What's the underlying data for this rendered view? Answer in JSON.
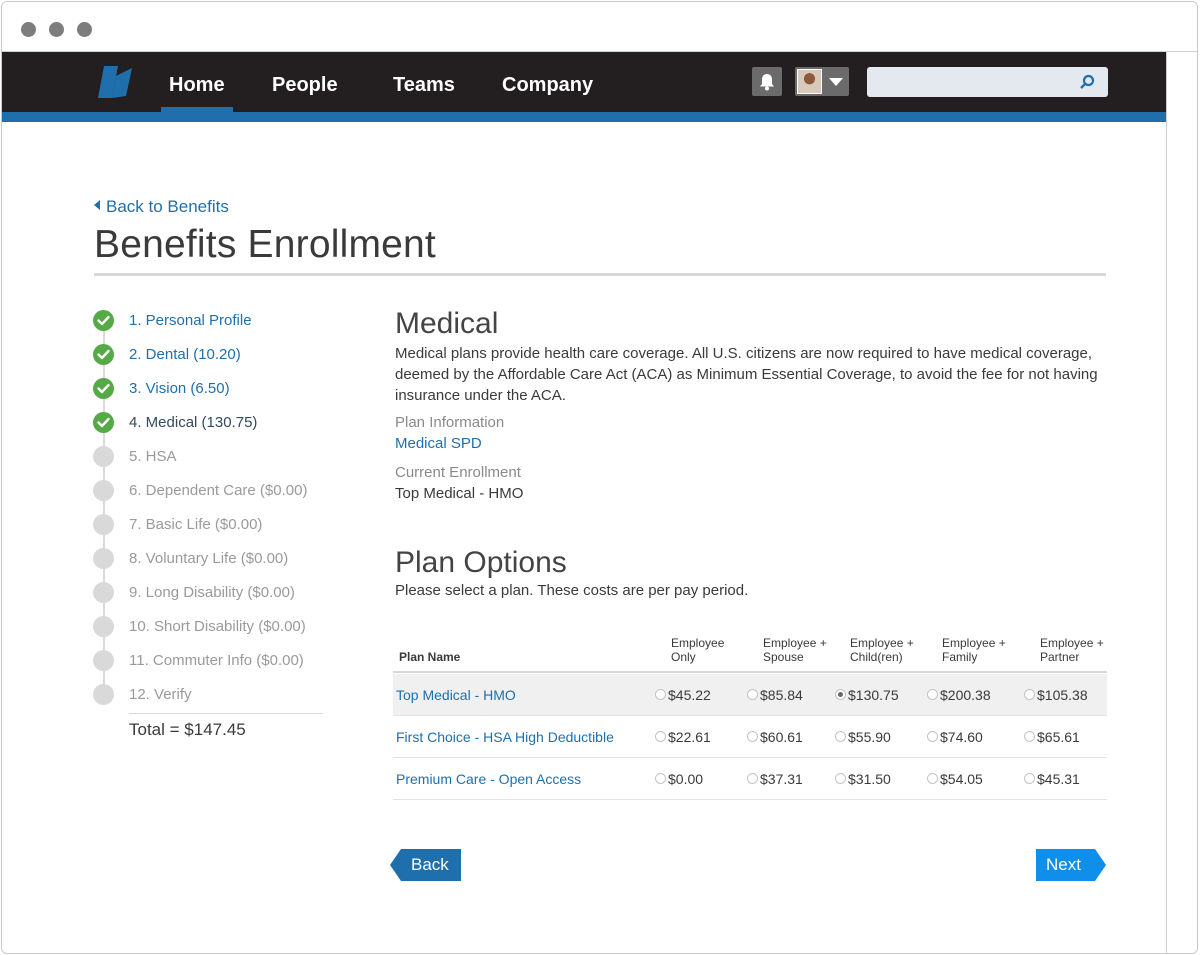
{
  "nav": {
    "items": [
      {
        "label": "Home",
        "active": true
      },
      {
        "label": "People",
        "active": false
      },
      {
        "label": "Teams",
        "active": false
      },
      {
        "label": "Company",
        "active": false
      }
    ],
    "search_value": "",
    "icons": {
      "logo": "brand-logo",
      "notifications": "bell-icon",
      "account": "avatar",
      "search": "search-icon"
    }
  },
  "page": {
    "back_link": "Back to Benefits",
    "title": "Benefits Enrollment"
  },
  "steps": [
    {
      "label": "1. Personal Profile",
      "status": "done"
    },
    {
      "label": "2. Dental (10.20)",
      "status": "done"
    },
    {
      "label": "3. Vision (6.50)",
      "status": "done"
    },
    {
      "label": "4. Medical (130.75)",
      "status": "current"
    },
    {
      "label": "5. HSA",
      "status": "todo"
    },
    {
      "label": "6. Dependent Care ($0.00)",
      "status": "todo"
    },
    {
      "label": "7. Basic Life ($0.00)",
      "status": "todo"
    },
    {
      "label": "8. Voluntary Life ($0.00)",
      "status": "todo"
    },
    {
      "label": "9. Long Disability ($0.00)",
      "status": "todo"
    },
    {
      "label": "10. Short Disability ($0.00)",
      "status": "todo"
    },
    {
      "label": "11. Commuter Info ($0.00)",
      "status": "todo"
    },
    {
      "label": "12. Verify",
      "status": "todo"
    }
  ],
  "total": "Total = $147.45",
  "medical": {
    "heading": "Medical",
    "description": "Medical plans provide health care coverage.  All U.S. citizens are now required to have medical coverage,  deemed by the Affordable Care Act (ACA) as Minimum Essential Coverage, to avoid the fee for not having insurance under the ACA.",
    "plan_info_label": "Plan Information",
    "plan_info_link": "Medical SPD",
    "current_enrollment_label": "Current Enrollment",
    "current_enrollment_value": "Top Medical - HMO"
  },
  "plans": {
    "heading": "Plan Options",
    "subtitle": "Please select a plan. These costs are per pay period.",
    "columns": [
      {
        "line1": "Plan Name",
        "line2": ""
      },
      {
        "line1": "Employee",
        "line2": "Only"
      },
      {
        "line1": "Employee +",
        "line2": "Spouse"
      },
      {
        "line1": "Employee +",
        "line2": "Child(ren)"
      },
      {
        "line1": "Employee +",
        "line2": "Family"
      },
      {
        "line1": "Employee +",
        "line2": "Partner"
      }
    ],
    "rows": [
      {
        "name": "Top Medical - HMO",
        "prices": [
          "$45.22",
          "$85.84",
          "$130.75",
          "$200.38",
          "$105.38"
        ],
        "selected_index": 2
      },
      {
        "name": "First Choice - HSA High Deductible",
        "prices": [
          "$22.61",
          "$60.61",
          "$55.90",
          "$74.60",
          "$65.61"
        ],
        "selected_index": -1
      },
      {
        "name": "Premium Care - Open Access",
        "prices": [
          "$0.00",
          "$37.31",
          "$31.50",
          "$54.05",
          "$45.31"
        ],
        "selected_index": -1
      }
    ]
  },
  "buttons": {
    "back": "Back",
    "next": "Next"
  },
  "colors": {
    "accent": "#1f6fad",
    "next": "#0f8fe9",
    "done": "#55a946",
    "navbar": "#231f20"
  }
}
